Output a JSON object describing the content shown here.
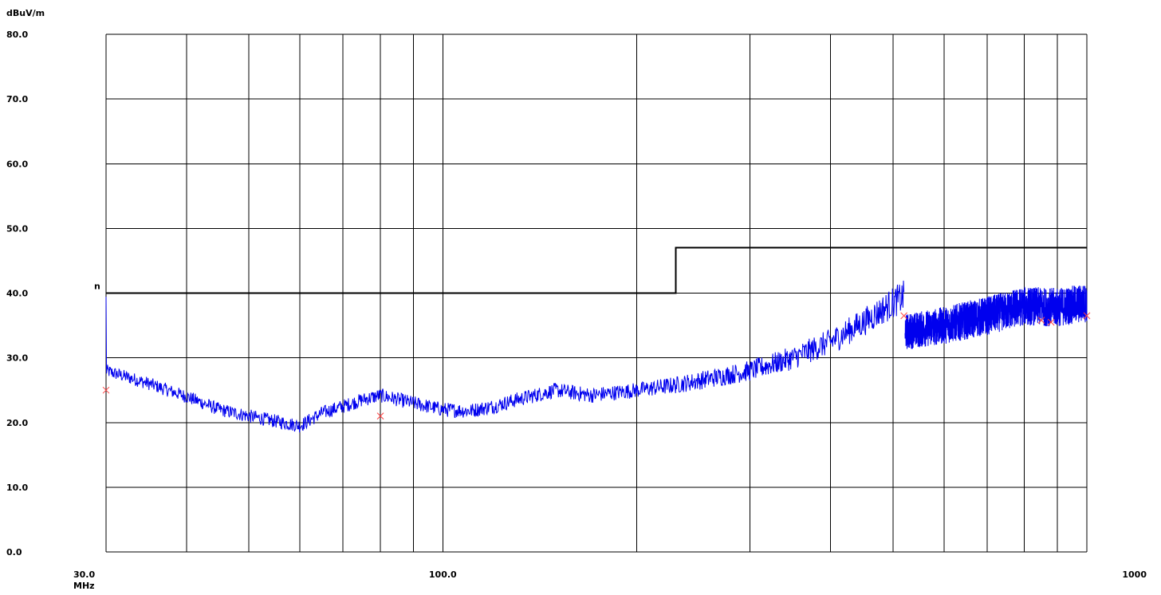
{
  "chart_data": {
    "type": "line",
    "y_unit_label": "dBuV/m",
    "x_unit_label": "MHz",
    "x_scale": "log",
    "xlim": [
      30,
      1000
    ],
    "ylim": [
      0,
      80
    ],
    "grid": true,
    "y_ticks": [
      {
        "value": 0,
        "label": "0.0"
      },
      {
        "value": 10,
        "label": "10.0"
      },
      {
        "value": 20,
        "label": "20.0"
      },
      {
        "value": 30,
        "label": "30.0"
      },
      {
        "value": 40,
        "label": "40.0"
      },
      {
        "value": 50,
        "label": "50.0"
      },
      {
        "value": 60,
        "label": "60.0"
      },
      {
        "value": 70,
        "label": "70.0"
      },
      {
        "value": 80,
        "label": "80.0"
      }
    ],
    "x_ticks": [
      {
        "value": 30,
        "label": "30.0"
      },
      {
        "value": 100,
        "label": "100.0"
      },
      {
        "value": 1000,
        "label": "1000"
      }
    ],
    "x_gridlines": [
      30,
      40,
      50,
      60,
      70,
      80,
      90,
      100,
      200,
      300,
      400,
      500,
      600,
      700,
      800,
      900,
      1000
    ],
    "limit_line": {
      "points": [
        [
          30,
          40
        ],
        [
          230,
          40
        ],
        [
          230,
          47
        ],
        [
          1000,
          47
        ]
      ],
      "marker_label": "n"
    },
    "series": [
      {
        "color": "#0000ee",
        "points": [
          [
            30,
            28
          ],
          [
            35,
            26
          ],
          [
            40,
            24
          ],
          [
            45,
            22
          ],
          [
            50,
            21
          ],
          [
            55,
            20.2
          ],
          [
            60,
            19.5
          ],
          [
            65,
            21.5
          ],
          [
            70,
            22.5
          ],
          [
            75,
            23.5
          ],
          [
            80,
            24.2
          ],
          [
            90,
            23.0
          ],
          [
            100,
            22.0
          ],
          [
            110,
            21.8
          ],
          [
            120,
            22.5
          ],
          [
            130,
            23.5
          ],
          [
            150,
            25.0
          ],
          [
            170,
            24.2
          ],
          [
            200,
            25.0
          ],
          [
            230,
            25.8
          ],
          [
            260,
            26.8
          ],
          [
            300,
            28.0
          ],
          [
            350,
            30.0
          ],
          [
            400,
            32.5
          ],
          [
            450,
            35.5
          ],
          [
            500,
            38.5
          ],
          [
            520,
            39.5
          ],
          [
            522,
            34.0
          ],
          [
            600,
            35.0
          ],
          [
            700,
            36.5
          ],
          [
            800,
            38.0
          ],
          [
            900,
            37.8
          ],
          [
            1000,
            38.5
          ]
        ],
        "spread": [
          [
            30,
            1.0
          ],
          [
            200,
            1.2
          ],
          [
            300,
            1.6
          ],
          [
            450,
            2.2
          ],
          [
            520,
            2.5
          ],
          [
            522,
            2.8
          ],
          [
            700,
            3.0
          ],
          [
            1000,
            3.0
          ]
        ]
      }
    ],
    "markers": {
      "color": "#ff4444",
      "points": [
        [
          30,
          25.0
        ],
        [
          80,
          21.0
        ],
        [
          520,
          36.5
        ],
        [
          850,
          35.8
        ],
        [
          880,
          35.5
        ],
        [
          1000,
          36.5
        ]
      ]
    }
  }
}
